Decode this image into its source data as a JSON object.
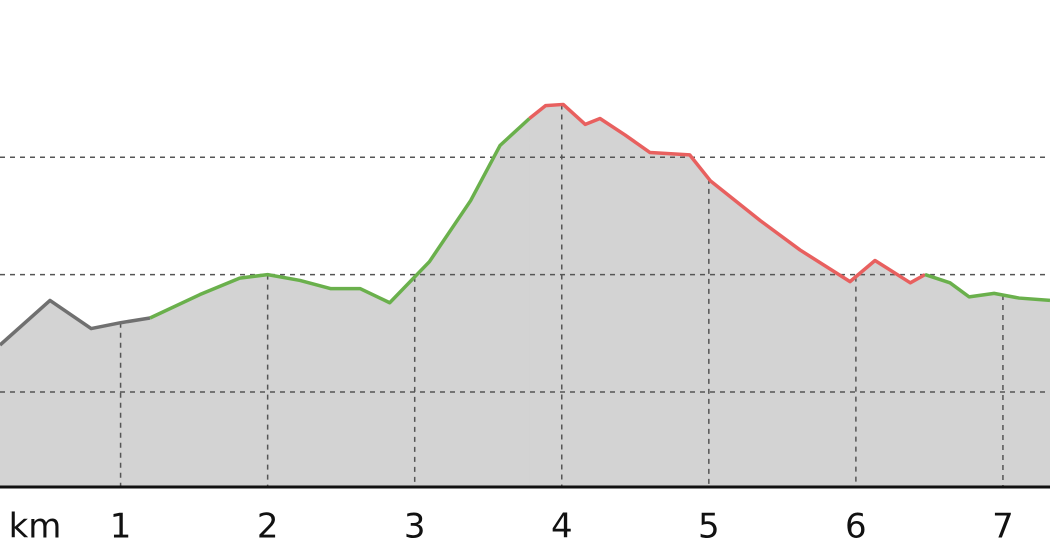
{
  "chart_data": {
    "type": "area-line",
    "x_label": "km",
    "xlim": [
      0.18,
      7.32
    ],
    "xticks": [
      1,
      2,
      3,
      4,
      5,
      6,
      7
    ],
    "ylim": [
      0.19,
      4.34
    ],
    "grid_levels": [
      1,
      2,
      3
    ],
    "grid": true,
    "fill_color": "#d3d3d3",
    "series": [
      {
        "color": "#707070",
        "x": [
          0.18,
          0.52,
          0.8,
          1.0,
          1.2
        ],
        "values": [
          1.4,
          1.78,
          1.54,
          1.59,
          1.63
        ]
      },
      {
        "color": "#6ab04c",
        "x": [
          1.2,
          1.54,
          1.81,
          2.0,
          2.22,
          2.43,
          2.63,
          2.83,
          3.1,
          3.38,
          3.58,
          3.78
        ],
        "values": [
          1.63,
          1.83,
          1.97,
          2.0,
          1.95,
          1.88,
          1.88,
          1.76,
          2.11,
          2.63,
          3.1,
          3.33
        ]
      },
      {
        "color": "#e8605f",
        "x": [
          3.78,
          3.89,
          4.01,
          4.16,
          4.26,
          4.43,
          4.6,
          4.87,
          5.01,
          5.35,
          5.62,
          5.96,
          6.13,
          6.37,
          6.47
        ],
        "values": [
          3.33,
          3.44,
          3.45,
          3.28,
          3.33,
          3.19,
          3.04,
          3.02,
          2.8,
          2.46,
          2.21,
          1.94,
          2.12,
          1.93,
          2.0
        ]
      },
      {
        "color": "#6ab04c",
        "x": [
          6.47,
          6.64,
          6.77,
          6.94,
          7.11,
          7.32
        ],
        "values": [
          2.0,
          1.93,
          1.81,
          1.84,
          1.8,
          1.78
        ]
      }
    ]
  }
}
